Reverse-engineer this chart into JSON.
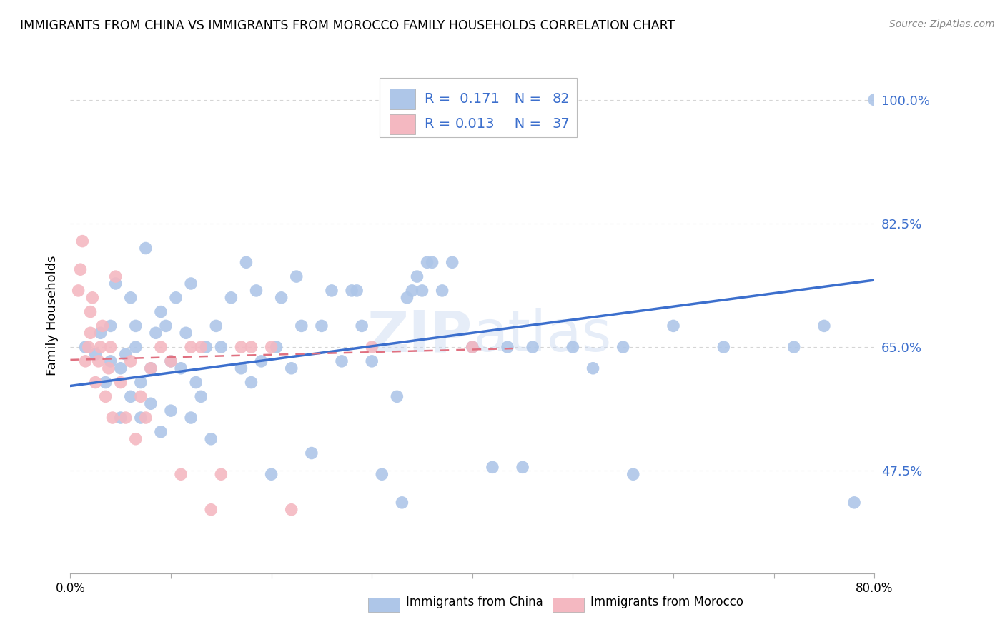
{
  "title": "IMMIGRANTS FROM CHINA VS IMMIGRANTS FROM MOROCCO FAMILY HOUSEHOLDS CORRELATION CHART",
  "source": "Source: ZipAtlas.com",
  "ylabel": "Family Households",
  "ytick_labels": [
    "100.0%",
    "82.5%",
    "65.0%",
    "47.5%"
  ],
  "ytick_values": [
    1.0,
    0.825,
    0.65,
    0.475
  ],
  "xmin": 0.0,
  "xmax": 0.8,
  "ymin": 0.33,
  "ymax": 1.06,
  "xtick_positions": [
    0.0,
    0.1,
    0.2,
    0.3,
    0.4,
    0.5,
    0.6,
    0.7,
    0.8
  ],
  "xtick_labels": [
    "0.0%",
    "",
    "",
    "",
    "",
    "",
    "",
    "",
    "80.0%"
  ],
  "legend_china_R": "0.171",
  "legend_china_N": "82",
  "legend_morocco_R": "0.013",
  "legend_morocco_N": "37",
  "legend_label_china": "Immigrants from China",
  "legend_label_morocco": "Immigrants from Morocco",
  "china_color": "#aec6e8",
  "morocco_color": "#f4b8c1",
  "china_line_color": "#3c6fcd",
  "morocco_line_color": "#e07080",
  "legend_text_color": "#3c6fcd",
  "watermark": "ZIPatlas",
  "china_scatter_x": [
    0.015,
    0.025,
    0.03,
    0.035,
    0.04,
    0.04,
    0.045,
    0.05,
    0.05,
    0.055,
    0.06,
    0.06,
    0.065,
    0.065,
    0.07,
    0.07,
    0.075,
    0.08,
    0.08,
    0.085,
    0.09,
    0.09,
    0.095,
    0.1,
    0.1,
    0.105,
    0.11,
    0.115,
    0.12,
    0.12,
    0.125,
    0.13,
    0.135,
    0.14,
    0.145,
    0.15,
    0.16,
    0.17,
    0.175,
    0.18,
    0.185,
    0.19,
    0.2,
    0.205,
    0.21,
    0.22,
    0.225,
    0.23,
    0.24,
    0.25,
    0.26,
    0.27,
    0.28,
    0.285,
    0.29,
    0.3,
    0.31,
    0.325,
    0.33,
    0.335,
    0.34,
    0.345,
    0.35,
    0.355,
    0.36,
    0.37,
    0.38,
    0.4,
    0.42,
    0.435,
    0.45,
    0.46,
    0.5,
    0.52,
    0.55,
    0.56,
    0.6,
    0.65,
    0.72,
    0.75,
    0.78,
    0.8
  ],
  "china_scatter_y": [
    0.65,
    0.64,
    0.67,
    0.6,
    0.63,
    0.68,
    0.74,
    0.55,
    0.62,
    0.64,
    0.58,
    0.72,
    0.65,
    0.68,
    0.55,
    0.6,
    0.79,
    0.57,
    0.62,
    0.67,
    0.53,
    0.7,
    0.68,
    0.56,
    0.63,
    0.72,
    0.62,
    0.67,
    0.55,
    0.74,
    0.6,
    0.58,
    0.65,
    0.52,
    0.68,
    0.65,
    0.72,
    0.62,
    0.77,
    0.6,
    0.73,
    0.63,
    0.47,
    0.65,
    0.72,
    0.62,
    0.75,
    0.68,
    0.5,
    0.68,
    0.73,
    0.63,
    0.73,
    0.73,
    0.68,
    0.63,
    0.47,
    0.58,
    0.43,
    0.72,
    0.73,
    0.75,
    0.73,
    0.77,
    0.77,
    0.73,
    0.77,
    0.65,
    0.48,
    0.65,
    0.48,
    0.65,
    0.65,
    0.62,
    0.65,
    0.47,
    0.68,
    0.65,
    0.65,
    0.68,
    0.43,
    1.0
  ],
  "morocco_scatter_x": [
    0.008,
    0.01,
    0.012,
    0.015,
    0.018,
    0.02,
    0.02,
    0.022,
    0.025,
    0.028,
    0.03,
    0.032,
    0.035,
    0.038,
    0.04,
    0.042,
    0.045,
    0.05,
    0.055,
    0.06,
    0.065,
    0.07,
    0.075,
    0.08,
    0.09,
    0.1,
    0.11,
    0.12,
    0.13,
    0.14,
    0.15,
    0.17,
    0.18,
    0.2,
    0.22,
    0.3,
    0.4
  ],
  "morocco_scatter_y": [
    0.73,
    0.76,
    0.8,
    0.63,
    0.65,
    0.67,
    0.7,
    0.72,
    0.6,
    0.63,
    0.65,
    0.68,
    0.58,
    0.62,
    0.65,
    0.55,
    0.75,
    0.6,
    0.55,
    0.63,
    0.52,
    0.58,
    0.55,
    0.62,
    0.65,
    0.63,
    0.47,
    0.65,
    0.65,
    0.42,
    0.47,
    0.65,
    0.65,
    0.65,
    0.42,
    0.65,
    0.65
  ],
  "china_trend_x": [
    0.0,
    0.8
  ],
  "china_trend_y": [
    0.595,
    0.745
  ],
  "morocco_trend_x": [
    0.0,
    0.44
  ],
  "morocco_trend_y": [
    0.632,
    0.648
  ],
  "grid_color": "#d5d5d5",
  "grid_style": "--"
}
